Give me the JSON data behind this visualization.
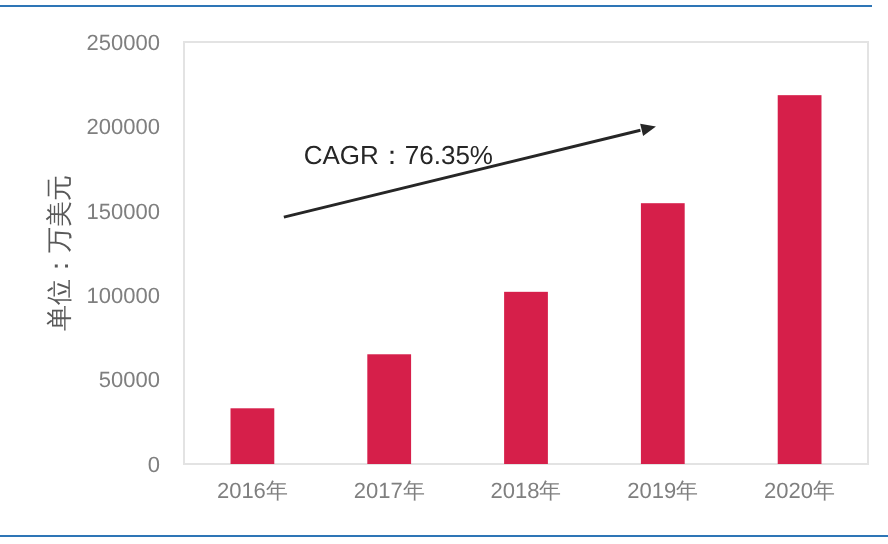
{
  "chart_data": {
    "type": "bar",
    "categories": [
      "2016年",
      "2017年",
      "2018年",
      "2019年",
      "2020年"
    ],
    "values": [
      33000,
      65000,
      102000,
      154500,
      218500
    ],
    "color": "#d61f4a",
    "ylabel": "单位：万美元",
    "ylim": [
      0,
      250000
    ],
    "yticks": [
      0,
      50000,
      100000,
      150000,
      200000,
      250000
    ],
    "grid": false,
    "annotations": [
      "CAGR：76.35%"
    ]
  }
}
